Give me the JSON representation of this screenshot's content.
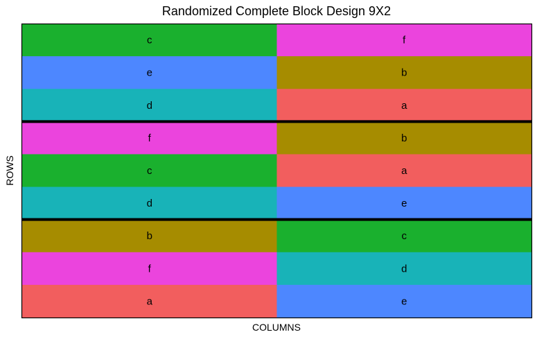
{
  "chart_data": {
    "type": "heatmap",
    "title": "Randomized Complete Block Design 9X2",
    "xlabel": "COLUMNS",
    "ylabel": "ROWS",
    "n_rows": 9,
    "n_cols": 2,
    "block_size": 3,
    "treatment_colors": {
      "a": "#F25E5E",
      "b": "#A68C00",
      "c": "#1AB02E",
      "d": "#18B3B8",
      "e": "#4D87FF",
      "f": "#EB44DD"
    },
    "cells": [
      [
        "c",
        "f"
      ],
      [
        "e",
        "b"
      ],
      [
        "d",
        "a"
      ],
      [
        "f",
        "b"
      ],
      [
        "c",
        "a"
      ],
      [
        "d",
        "e"
      ],
      [
        "b",
        "c"
      ],
      [
        "f",
        "d"
      ],
      [
        "a",
        "e"
      ]
    ],
    "grid": false,
    "legend": "none"
  }
}
